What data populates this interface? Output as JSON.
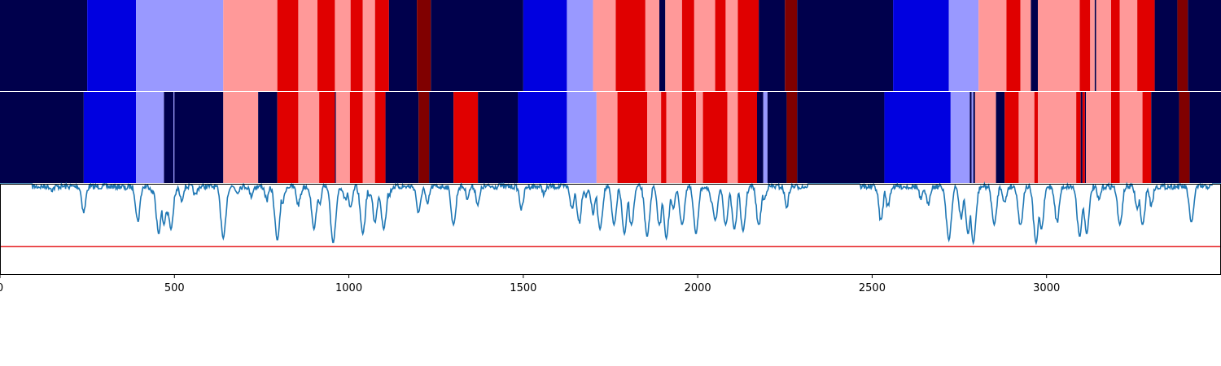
{
  "chart_data": [
    {
      "type": "heatmap",
      "xlim": [
        0,
        3500
      ],
      "colormap": "seismic",
      "segments": [
        {
          "end": 250,
          "color": "#00004c"
        },
        {
          "end": 390,
          "color": "#0000e0"
        },
        {
          "end": 640,
          "color": "#9999ff"
        },
        {
          "end": 795,
          "color": "#ff9999"
        },
        {
          "end": 855,
          "color": "#e00000"
        },
        {
          "end": 910,
          "color": "#ff9999"
        },
        {
          "end": 960,
          "color": "#e00000"
        },
        {
          "end": 1005,
          "color": "#ff9999"
        },
        {
          "end": 1040,
          "color": "#e00000"
        },
        {
          "end": 1075,
          "color": "#ff9999"
        },
        {
          "end": 1115,
          "color": "#e00000"
        },
        {
          "end": 1195,
          "color": "#00004c"
        },
        {
          "end": 1235,
          "color": "#800000"
        },
        {
          "end": 1500,
          "color": "#00004c"
        },
        {
          "end": 1625,
          "color": "#0000e0"
        },
        {
          "end": 1700,
          "color": "#9999ff"
        },
        {
          "end": 1765,
          "color": "#ff9999"
        },
        {
          "end": 1850,
          "color": "#e00000"
        },
        {
          "end": 1890,
          "color": "#ff9999"
        },
        {
          "end": 1907,
          "color": "#00004c"
        },
        {
          "end": 1955,
          "color": "#ff9999"
        },
        {
          "end": 1990,
          "color": "#e00000"
        },
        {
          "end": 2050,
          "color": "#ff9999"
        },
        {
          "end": 2080,
          "color": "#e00000"
        },
        {
          "end": 2115,
          "color": "#ff9999"
        },
        {
          "end": 2175,
          "color": "#e00000"
        },
        {
          "end": 2250,
          "color": "#00004c"
        },
        {
          "end": 2285,
          "color": "#800000"
        },
        {
          "end": 2560,
          "color": "#00004c"
        },
        {
          "end": 2720,
          "color": "#0000e0"
        },
        {
          "end": 2805,
          "color": "#9999ff"
        },
        {
          "end": 2885,
          "color": "#ff9999"
        },
        {
          "end": 2925,
          "color": "#e00000"
        },
        {
          "end": 2955,
          "color": "#ff9999"
        },
        {
          "end": 2975,
          "color": "#00004c"
        },
        {
          "end": 3095,
          "color": "#ff9999"
        },
        {
          "end": 3125,
          "color": "#e00000"
        },
        {
          "end": 3138,
          "color": "#ff9999"
        },
        {
          "end": 3142,
          "color": "#00004c"
        },
        {
          "end": 3185,
          "color": "#ff9999"
        },
        {
          "end": 3210,
          "color": "#e00000"
        },
        {
          "end": 3260,
          "color": "#ff9999"
        },
        {
          "end": 3310,
          "color": "#e00000"
        },
        {
          "end": 3375,
          "color": "#00004c"
        },
        {
          "end": 3405,
          "color": "#800000"
        },
        {
          "end": 3500,
          "color": "#00004c"
        }
      ]
    },
    {
      "type": "heatmap",
      "xlim": [
        0,
        3500
      ],
      "colormap": "seismic",
      "segments": [
        {
          "end": 240,
          "color": "#00004c"
        },
        {
          "end": 390,
          "color": "#0000e0"
        },
        {
          "end": 470,
          "color": "#9999ff"
        },
        {
          "end": 497,
          "color": "#00004c"
        },
        {
          "end": 500,
          "color": "#9999ff"
        },
        {
          "end": 640,
          "color": "#00004c"
        },
        {
          "end": 740,
          "color": "#ff9999"
        },
        {
          "end": 795,
          "color": "#00004c"
        },
        {
          "end": 855,
          "color": "#e00000"
        },
        {
          "end": 915,
          "color": "#ff9999"
        },
        {
          "end": 960,
          "color": "#e00000"
        },
        {
          "end": 963,
          "color": "#00004c"
        },
        {
          "end": 1003,
          "color": "#ff9999"
        },
        {
          "end": 1040,
          "color": "#e00000"
        },
        {
          "end": 1075,
          "color": "#ff9999"
        },
        {
          "end": 1105,
          "color": "#e00000"
        },
        {
          "end": 1200,
          "color": "#00004c"
        },
        {
          "end": 1230,
          "color": "#800000"
        },
        {
          "end": 1300,
          "color": "#00004c"
        },
        {
          "end": 1370,
          "color": "#e00000"
        },
        {
          "end": 1485,
          "color": "#00004c"
        },
        {
          "end": 1625,
          "color": "#0000e0"
        },
        {
          "end": 1710,
          "color": "#9999ff"
        },
        {
          "end": 1770,
          "color": "#ff9999"
        },
        {
          "end": 1855,
          "color": "#e00000"
        },
        {
          "end": 1895,
          "color": "#ff9999"
        },
        {
          "end": 1910,
          "color": "#e00000"
        },
        {
          "end": 1955,
          "color": "#ff9999"
        },
        {
          "end": 1995,
          "color": "#e00000"
        },
        {
          "end": 2015,
          "color": "#ff9999"
        },
        {
          "end": 2085,
          "color": "#e00000"
        },
        {
          "end": 2115,
          "color": "#ff9999"
        },
        {
          "end": 2170,
          "color": "#e00000"
        },
        {
          "end": 2188,
          "color": "#00004c"
        },
        {
          "end": 2200,
          "color": "#9999ff"
        },
        {
          "end": 2255,
          "color": "#00004c"
        },
        {
          "end": 2285,
          "color": "#800000"
        },
        {
          "end": 2535,
          "color": "#00004c"
        },
        {
          "end": 2725,
          "color": "#0000e0"
        },
        {
          "end": 2780,
          "color": "#9999ff"
        },
        {
          "end": 2785,
          "color": "#00004c"
        },
        {
          "end": 2790,
          "color": "#9999ff"
        },
        {
          "end": 2795,
          "color": "#00004c"
        },
        {
          "end": 2855,
          "color": "#ff9999"
        },
        {
          "end": 2880,
          "color": "#00004c"
        },
        {
          "end": 2920,
          "color": "#e00000"
        },
        {
          "end": 2965,
          "color": "#ff9999"
        },
        {
          "end": 2975,
          "color": "#e00000"
        },
        {
          "end": 3085,
          "color": "#ff9999"
        },
        {
          "end": 3098,
          "color": "#e00000"
        },
        {
          "end": 3103,
          "color": "#00004c"
        },
        {
          "end": 3110,
          "color": "#e00000"
        },
        {
          "end": 3113,
          "color": "#00004c"
        },
        {
          "end": 3185,
          "color": "#ff9999"
        },
        {
          "end": 3210,
          "color": "#e00000"
        },
        {
          "end": 3275,
          "color": "#ff9999"
        },
        {
          "end": 3300,
          "color": "#e00000"
        },
        {
          "end": 3380,
          "color": "#00004c"
        },
        {
          "end": 3410,
          "color": "#800000"
        },
        {
          "end": 3500,
          "color": "#00004c"
        }
      ]
    },
    {
      "type": "line",
      "xlim": [
        0,
        3500
      ],
      "ylim": [
        0,
        1
      ],
      "x_ticks": [
        0,
        500,
        1000,
        1500,
        2000,
        2500,
        3000
      ],
      "x_tick_labels": [
        "0",
        "500",
        "1000",
        "1500",
        "2000",
        "2500",
        "3000"
      ],
      "grid": false,
      "threshold": {
        "value": 0.31,
        "color": "#e41a1c"
      },
      "series": [
        {
          "color": "#1f77b4",
          "baseline": 1.0,
          "dips": [
            [
              150,
              0.97
            ],
            [
              240,
              0.72
            ],
            [
              360,
              0.98
            ],
            [
              395,
              0.62
            ],
            [
              440,
              0.92
            ],
            [
              455,
              0.45
            ],
            [
              470,
              0.55
            ],
            [
              480,
              0.7
            ],
            [
              490,
              0.5
            ],
            [
              500,
              0.88
            ],
            [
              520,
              0.85
            ],
            [
              560,
              0.9
            ],
            [
              640,
              0.4
            ],
            [
              680,
              0.94
            ],
            [
              720,
              0.9
            ],
            [
              765,
              0.85
            ],
            [
              795,
              0.38
            ],
            [
              810,
              0.82
            ],
            [
              855,
              0.8
            ],
            [
              860,
              0.9
            ],
            [
              900,
              0.5
            ],
            [
              915,
              0.8
            ],
            [
              955,
              0.35
            ],
            [
              990,
              0.85
            ],
            [
              1005,
              0.75
            ],
            [
              1040,
              0.45
            ],
            [
              1060,
              0.88
            ],
            [
              1075,
              0.6
            ],
            [
              1090,
              0.85
            ],
            [
              1100,
              0.5
            ],
            [
              1115,
              0.9
            ],
            [
              1200,
              0.7
            ],
            [
              1225,
              0.8
            ],
            [
              1300,
              0.55
            ],
            [
              1340,
              0.88
            ],
            [
              1370,
              0.8
            ],
            [
              1495,
              0.75
            ],
            [
              1560,
              0.92
            ],
            [
              1640,
              0.75
            ],
            [
              1660,
              0.6
            ],
            [
              1680,
              0.9
            ],
            [
              1700,
              0.7
            ],
            [
              1720,
              0.5
            ],
            [
              1760,
              0.55
            ],
            [
              1790,
              0.45
            ],
            [
              1810,
              0.55
            ],
            [
              1855,
              0.42
            ],
            [
              1890,
              0.55
            ],
            [
              1910,
              0.4
            ],
            [
              1930,
              0.75
            ],
            [
              1955,
              0.55
            ],
            [
              1995,
              0.45
            ],
            [
              2040,
              0.8
            ],
            [
              2050,
              0.6
            ],
            [
              2080,
              0.55
            ],
            [
              2105,
              0.5
            ],
            [
              2130,
              0.48
            ],
            [
              2175,
              0.55
            ],
            [
              2190,
              0.85
            ],
            [
              2255,
              0.78
            ],
            [
              2525,
              0.62
            ],
            [
              2545,
              0.78
            ],
            [
              2640,
              0.85
            ],
            [
              2660,
              0.8
            ],
            [
              2720,
              0.38
            ],
            [
              2755,
              0.65
            ],
            [
              2775,
              0.45
            ],
            [
              2790,
              0.35
            ],
            [
              2850,
              0.55
            ],
            [
              2880,
              0.82
            ],
            [
              2925,
              0.55
            ],
            [
              2970,
              0.35
            ],
            [
              2985,
              0.5
            ],
            [
              3030,
              0.6
            ],
            [
              3095,
              0.42
            ],
            [
              3115,
              0.45
            ],
            [
              3150,
              0.85
            ],
            [
              3210,
              0.55
            ],
            [
              3260,
              0.75
            ],
            [
              3275,
              0.55
            ],
            [
              3300,
              0.8
            ],
            [
              3415,
              0.58
            ]
          ]
        }
      ]
    }
  ]
}
